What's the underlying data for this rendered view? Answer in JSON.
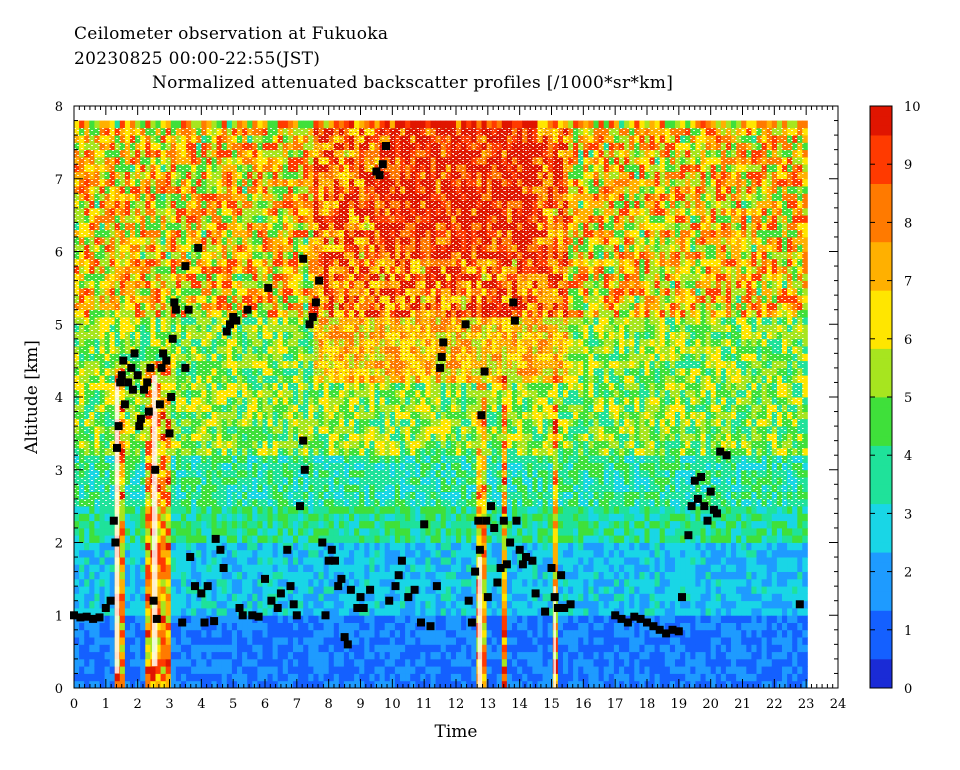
{
  "title_lines": [
    "Ceilometer observation at Fukuoka",
    "20230825  00:00-22:55(JST)",
    "Normalized attenuated backscatter profiles [/1000*sr*km]"
  ],
  "chart_data": {
    "type": "heatmap",
    "title": "Ceilometer observation at Fukuoka",
    "subtitle": "20230825  00:00-22:55(JST)",
    "colorbar_title": "Normalized attenuated backscatter profiles [/1000*sr*km]",
    "xlabel": "Time",
    "ylabel": "Altitude [km]",
    "xlim": [
      0,
      24
    ],
    "ylim": [
      0,
      8
    ],
    "data_time_range": [
      0,
      22.92
    ],
    "data_altitude_max": 7.7,
    "x_ticks": [
      "0",
      "1",
      "2",
      "3",
      "4",
      "5",
      "6",
      "7",
      "8",
      "9",
      "10",
      "11",
      "12",
      "13",
      "14",
      "15",
      "16",
      "17",
      "18",
      "19",
      "20",
      "21",
      "22",
      "23",
      "24"
    ],
    "y_ticks": [
      "0",
      "1",
      "2",
      "3",
      "4",
      "5",
      "6",
      "7",
      "8"
    ],
    "colorbar": {
      "range": [
        0,
        10
      ],
      "ticks": [
        "0",
        "1",
        "2",
        "3",
        "4",
        "5",
        "6",
        "7",
        "8",
        "9",
        "10"
      ],
      "colors": [
        "#1a2bd6",
        "#1460ff",
        "#1e9bff",
        "#19d6e6",
        "#1fe29a",
        "#3fe03a",
        "#a7e51f",
        "#ffe600",
        "#ffb000",
        "#ff7a00",
        "#ff3a00",
        "#e01500"
      ]
    },
    "cloud_base_points": [
      [
        0.0,
        1.0
      ],
      [
        0.2,
        0.97
      ],
      [
        0.4,
        0.98
      ],
      [
        0.6,
        0.95
      ],
      [
        0.8,
        0.97
      ],
      [
        1.0,
        1.1
      ],
      [
        1.15,
        1.2
      ],
      [
        1.25,
        2.3
      ],
      [
        1.3,
        2.0
      ],
      [
        1.35,
        3.3
      ],
      [
        1.4,
        3.6
      ],
      [
        1.45,
        4.2
      ],
      [
        1.5,
        4.3
      ],
      [
        1.55,
        4.5
      ],
      [
        1.6,
        3.9
      ],
      [
        1.7,
        4.2
      ],
      [
        1.8,
        4.4
      ],
      [
        1.85,
        4.1
      ],
      [
        1.9,
        4.6
      ],
      [
        2.0,
        4.3
      ],
      [
        2.05,
        3.6
      ],
      [
        2.1,
        3.7
      ],
      [
        2.2,
        4.1
      ],
      [
        2.3,
        4.2
      ],
      [
        2.35,
        3.8
      ],
      [
        2.4,
        4.4
      ],
      [
        2.5,
        1.2
      ],
      [
        2.55,
        3.0
      ],
      [
        2.6,
        0.95
      ],
      [
        2.7,
        3.9
      ],
      [
        2.75,
        4.4
      ],
      [
        2.8,
        4.6
      ],
      [
        2.9,
        4.5
      ],
      [
        3.0,
        3.5
      ],
      [
        3.05,
        4.0
      ],
      [
        3.1,
        4.8
      ],
      [
        3.15,
        5.3
      ],
      [
        3.2,
        5.2
      ],
      [
        3.4,
        0.9
      ],
      [
        3.5,
        4.4
      ],
      [
        3.5,
        5.8
      ],
      [
        3.6,
        5.2
      ],
      [
        3.65,
        1.8
      ],
      [
        3.8,
        1.4
      ],
      [
        3.9,
        6.05
      ],
      [
        4.0,
        1.3
      ],
      [
        4.1,
        0.9
      ],
      [
        4.2,
        1.4
      ],
      [
        4.4,
        0.92
      ],
      [
        4.45,
        2.05
      ],
      [
        4.6,
        1.9
      ],
      [
        4.7,
        1.65
      ],
      [
        4.8,
        4.9
      ],
      [
        4.9,
        5.0
      ],
      [
        5.0,
        5.1
      ],
      [
        5.1,
        5.05
      ],
      [
        5.2,
        1.1
      ],
      [
        5.3,
        1.0
      ],
      [
        5.45,
        5.2
      ],
      [
        5.6,
        1.0
      ],
      [
        5.8,
        0.98
      ],
      [
        6.0,
        1.5
      ],
      [
        6.1,
        5.5
      ],
      [
        6.2,
        1.2
      ],
      [
        6.4,
        1.1
      ],
      [
        6.5,
        1.3
      ],
      [
        6.7,
        1.9
      ],
      [
        6.8,
        1.4
      ],
      [
        6.9,
        1.15
      ],
      [
        7.0,
        1.0
      ],
      [
        7.1,
        2.5
      ],
      [
        7.2,
        3.4
      ],
      [
        7.2,
        5.9
      ],
      [
        7.25,
        3.0
      ],
      [
        7.4,
        5.0
      ],
      [
        7.5,
        5.1
      ],
      [
        7.6,
        5.3
      ],
      [
        7.7,
        5.6
      ],
      [
        7.8,
        2.0
      ],
      [
        7.9,
        1.0
      ],
      [
        8.0,
        1.75
      ],
      [
        8.1,
        1.9
      ],
      [
        8.2,
        1.75
      ],
      [
        8.3,
        1.4
      ],
      [
        8.4,
        1.5
      ],
      [
        8.5,
        0.7
      ],
      [
        8.6,
        0.6
      ],
      [
        8.7,
        1.35
      ],
      [
        8.9,
        1.1
      ],
      [
        9.0,
        1.25
      ],
      [
        9.1,
        1.1
      ],
      [
        9.3,
        1.35
      ],
      [
        9.5,
        7.1
      ],
      [
        9.6,
        7.05
      ],
      [
        9.7,
        7.2
      ],
      [
        9.8,
        7.45
      ],
      [
        9.9,
        1.2
      ],
      [
        10.1,
        1.4
      ],
      [
        10.2,
        1.55
      ],
      [
        10.3,
        1.75
      ],
      [
        10.5,
        1.25
      ],
      [
        10.7,
        1.35
      ],
      [
        10.9,
        0.9
      ],
      [
        11.0,
        2.25
      ],
      [
        11.2,
        0.85
      ],
      [
        11.4,
        1.4
      ],
      [
        11.5,
        4.4
      ],
      [
        11.55,
        4.55
      ],
      [
        11.6,
        4.75
      ],
      [
        12.3,
        5.0
      ],
      [
        12.4,
        1.2
      ],
      [
        12.5,
        0.9
      ],
      [
        12.6,
        1.6
      ],
      [
        12.7,
        2.3
      ],
      [
        12.75,
        1.9
      ],
      [
        12.8,
        3.75
      ],
      [
        12.9,
        4.35
      ],
      [
        12.95,
        2.3
      ],
      [
        13.0,
        1.25
      ],
      [
        13.1,
        2.5
      ],
      [
        13.2,
        2.2
      ],
      [
        13.3,
        1.45
      ],
      [
        13.4,
        1.65
      ],
      [
        13.5,
        2.3
      ],
      [
        13.6,
        1.7
      ],
      [
        13.7,
        2.0
      ],
      [
        13.8,
        5.3
      ],
      [
        13.85,
        5.05
      ],
      [
        13.9,
        2.3
      ],
      [
        14.0,
        1.9
      ],
      [
        14.1,
        1.7
      ],
      [
        14.2,
        1.8
      ],
      [
        14.4,
        1.75
      ],
      [
        14.5,
        1.3
      ],
      [
        14.8,
        1.05
      ],
      [
        15.0,
        1.65
      ],
      [
        15.1,
        1.25
      ],
      [
        15.2,
        1.1
      ],
      [
        15.3,
        1.55
      ],
      [
        15.4,
        1.1
      ],
      [
        15.6,
        1.15
      ],
      [
        17.0,
        1.0
      ],
      [
        17.2,
        0.95
      ],
      [
        17.4,
        0.9
      ],
      [
        17.6,
        0.98
      ],
      [
        17.8,
        0.95
      ],
      [
        18.0,
        0.9
      ],
      [
        18.2,
        0.85
      ],
      [
        18.4,
        0.8
      ],
      [
        18.6,
        0.75
      ],
      [
        18.8,
        0.8
      ],
      [
        19.0,
        0.78
      ],
      [
        19.1,
        1.25
      ],
      [
        19.3,
        2.1
      ],
      [
        19.4,
        2.5
      ],
      [
        19.5,
        2.85
      ],
      [
        19.6,
        2.6
      ],
      [
        19.7,
        2.9
      ],
      [
        19.8,
        2.5
      ],
      [
        19.9,
        2.3
      ],
      [
        20.0,
        2.7
      ],
      [
        20.1,
        2.45
      ],
      [
        20.2,
        2.4
      ],
      [
        20.3,
        3.25
      ],
      [
        20.5,
        3.2
      ],
      [
        22.8,
        1.15
      ]
    ]
  }
}
